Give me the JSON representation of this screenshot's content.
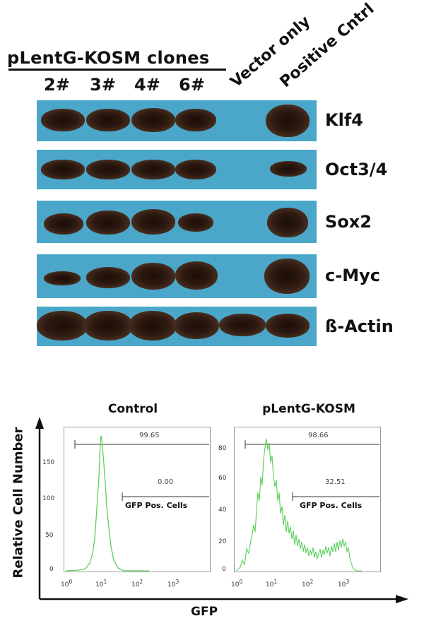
{
  "western_blot": {
    "clones_title": "pLentG-KOSM clones",
    "lanes": [
      {
        "label": "2#"
      },
      {
        "label": "3#"
      },
      {
        "label": "4#"
      },
      {
        "label": "6#"
      },
      {
        "label": "Vector only"
      },
      {
        "label": "Positive Cntrl"
      }
    ],
    "proteins": [
      "Klf4",
      "Oct3/4",
      "Sox2",
      "c-Myc",
      "ß-Actin"
    ]
  },
  "flow_cytometry": {
    "y_label": "Relative Cell Number",
    "x_label": "GFP",
    "x_ticks": [
      "10",
      "10",
      "10",
      "10"
    ],
    "x_exponents": [
      "0",
      "1",
      "2",
      "3"
    ],
    "panels": [
      {
        "title": "Control",
        "y_ticks": [
          "0",
          "50",
          "100",
          "150"
        ],
        "gate_all_value": "99.65",
        "gate_pos_value": "0.00",
        "gate_pos_label": "GFP Pos. Cells"
      },
      {
        "title": "pLentG-KOSM",
        "y_ticks": [
          "0",
          "20",
          "40",
          "60",
          "80"
        ],
        "gate_all_value": "98.66",
        "gate_pos_value": "32.51",
        "gate_pos_label": "GFP Pos. Cells"
      }
    ],
    "colors": {
      "histogram": "#5ccf5c",
      "gate": "#333333"
    }
  }
}
